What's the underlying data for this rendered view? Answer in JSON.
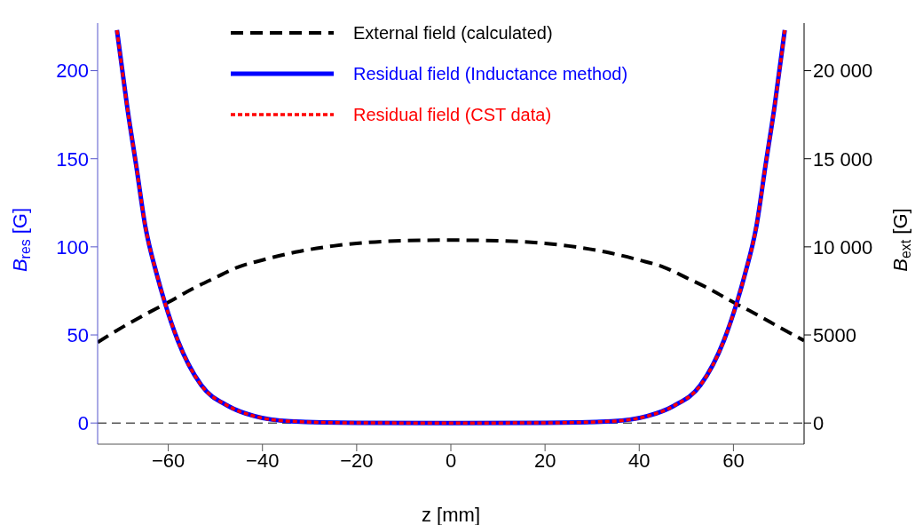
{
  "chart_data": {
    "type": "line",
    "xlabel": "z [mm]",
    "ylabel": "B$_{res}$ [G]",
    "y2label": "B$_{ext}$ [G]",
    "xlim": [
      -75,
      75
    ],
    "xticks": [
      {
        "value": -60,
        "label": "−60"
      },
      {
        "value": -40,
        "label": "−40"
      },
      {
        "value": -20,
        "label": "−20"
      },
      0,
      20,
      40,
      60
    ],
    "ylim": [
      -12,
      227
    ],
    "yticks": [
      0,
      50,
      100,
      150,
      200
    ],
    "y2lim": [
      -1200,
      22700
    ],
    "y2ticks": [
      0,
      5000,
      {
        "value": 10000,
        "label": "10 000"
      },
      {
        "value": 15000,
        "label": "15 000"
      },
      {
        "value": 20000,
        "label": "20 000"
      }
    ],
    "grid": false,
    "legend": "top",
    "marker": "none",
    "ref_lines": [
      {
        "axis": "y",
        "value": 0,
        "color": "#000000",
        "line_style": "dashed"
      }
    ],
    "series": [
      {
        "name": "External field (calculated)",
        "color": "#000000",
        "axis": "y2",
        "line_style": "dashed",
        "x": [
          -75,
          -70,
          -65,
          -60,
          -55,
          -50,
          -45,
          -40,
          -33,
          -25,
          -20,
          -10,
          0,
          10,
          20,
          25,
          33,
          40,
          45,
          50,
          55,
          60,
          65,
          70,
          75
        ],
        "values": [
          4580,
          5400,
          6150,
          6850,
          7600,
          8250,
          8870,
          9250,
          9700,
          10050,
          10200,
          10350,
          10380,
          10350,
          10200,
          10050,
          9700,
          9250,
          8870,
          8250,
          7600,
          6850,
          6150,
          5400,
          4680
        ]
      },
      {
        "name": "Residual field (Inductance method)",
        "color": "#0000ff",
        "line_style": "solid",
        "x": [
          -70.9,
          -68.7,
          -66.8,
          -64.9,
          -62.4,
          -60.8,
          -58,
          -53,
          -47.3,
          -41.7,
          -34.1,
          -20,
          0,
          20,
          34.1,
          41.7,
          47.3,
          53,
          58,
          60.8,
          62.4,
          64.9,
          66.8,
          68.7,
          70.9
        ],
        "values": [
          223,
          179,
          146,
          112,
          84,
          69,
          47,
          21.5,
          9.7,
          3.9,
          1,
          0.1,
          0,
          0.1,
          1,
          3.9,
          9.7,
          21.5,
          47,
          69,
          84,
          112,
          146,
          179,
          223
        ]
      },
      {
        "name": "Residual field (CST data)",
        "color": "#ff0000",
        "line_style": "dotted",
        "x": [
          -70.9,
          -68.7,
          -66.8,
          -64.9,
          -62.4,
          -60.8,
          -58,
          -53,
          -47.3,
          -41.7,
          -34.1,
          -20,
          0,
          20,
          34.1,
          41.7,
          47.3,
          53,
          58,
          60.8,
          62.4,
          64.9,
          66.8,
          68.7,
          70.9
        ],
        "values": [
          223,
          179,
          146,
          112,
          84,
          69,
          47,
          21.5,
          9.7,
          3.9,
          1,
          0.1,
          0,
          0.1,
          1,
          3.9,
          9.7,
          21.5,
          47,
          69,
          84,
          112,
          146,
          179,
          223
        ]
      }
    ]
  }
}
